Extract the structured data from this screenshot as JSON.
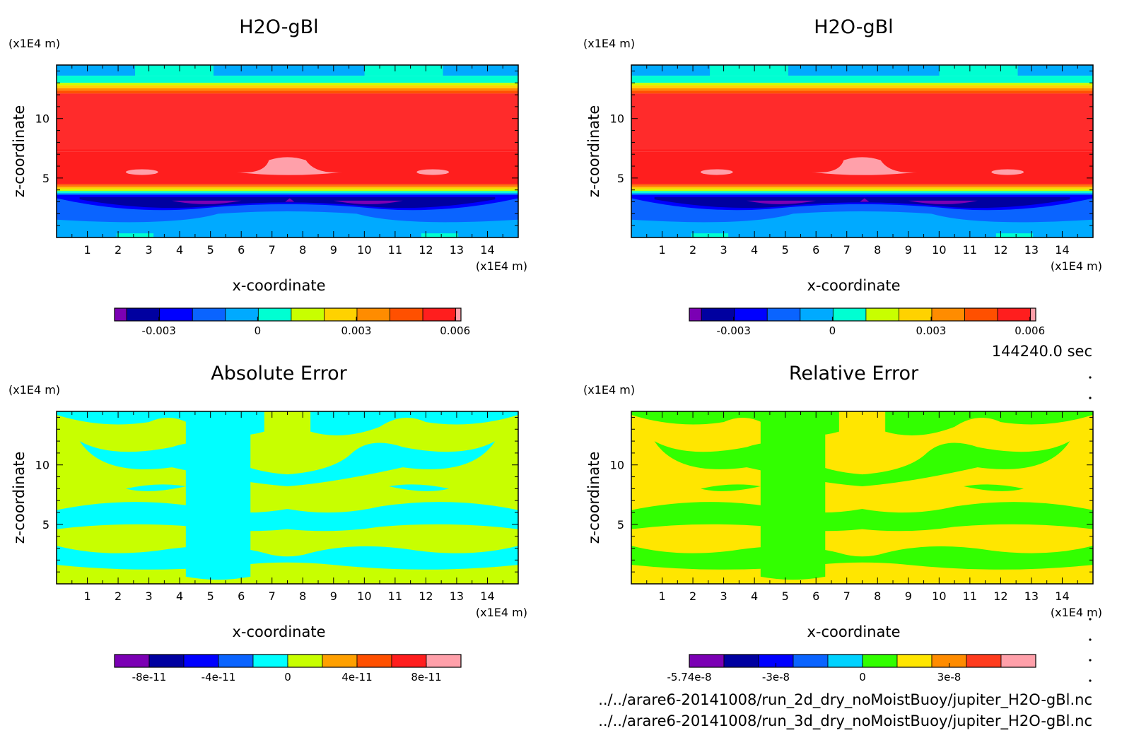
{
  "colors": {
    "palette": [
      "#7b00b4",
      "#0000a0",
      "#0000ff",
      "#0a64ff",
      "#00aaff",
      "#00ffd2",
      "#c8ff00",
      "#ffd200",
      "#ff8c00",
      "#ff5000",
      "#ff1e1e",
      "#ffa0aa"
    ]
  },
  "chart_data": [
    {
      "type": "heatmap",
      "title": "H2O-gBl",
      "xlabel": "x-coordinate",
      "ylabel": "z-coordinate",
      "xunit": "(x1E4 m)",
      "yunit": "(x1E4 m)",
      "xlim": [
        0,
        15
      ],
      "ylim": [
        0,
        14.5
      ],
      "xticks": [
        "1",
        "2",
        "3",
        "4",
        "5",
        "6",
        "7",
        "8",
        "9",
        "10",
        "11",
        "12",
        "13",
        "14"
      ],
      "yticks": [
        "5",
        "10"
      ],
      "colorbar_ticks": [
        "-0.003",
        "0",
        "0.003",
        "0.006"
      ],
      "colorbar_range": [
        -0.0045,
        0.0066
      ],
      "field": "h2o"
    },
    {
      "type": "heatmap",
      "title": "H2O-gBl",
      "xlabel": "x-coordinate",
      "ylabel": "z-coordinate",
      "xunit": "(x1E4 m)",
      "yunit": "(x1E4 m)",
      "xlim": [
        0,
        15
      ],
      "ylim": [
        0,
        14.5
      ],
      "xticks": [
        "1",
        "2",
        "3",
        "4",
        "5",
        "6",
        "7",
        "8",
        "9",
        "10",
        "11",
        "12",
        "13",
        "14"
      ],
      "yticks": [
        "5",
        "10"
      ],
      "colorbar_ticks": [
        "-0.003",
        "0",
        "0.003",
        "0.006"
      ],
      "colorbar_range": [
        -0.0045,
        0.0066
      ],
      "field": "h2o"
    },
    {
      "type": "heatmap",
      "title": "Absolute Error",
      "xlabel": "x-coordinate",
      "ylabel": "z-coordinate",
      "xunit": "(x1E4 m)",
      "yunit": "(x1E4 m)",
      "xlim": [
        0,
        15
      ],
      "ylim": [
        0,
        14.5
      ],
      "xticks": [
        "1",
        "2",
        "3",
        "4",
        "5",
        "6",
        "7",
        "8",
        "9",
        "10",
        "11",
        "12",
        "13",
        "14"
      ],
      "yticks": [
        "5",
        "10"
      ],
      "colorbar_ticks": [
        "-8e-11",
        "-4e-11",
        "0",
        "4e-11",
        "8e-11"
      ],
      "colorbar_range": [
        -1e-10,
        1e-10
      ],
      "field": "abs_error",
      "levels_shown": [
        "0 to 2e-11 (cyan)",
        "2e-11 to 4e-11 (yellow-green)"
      ]
    },
    {
      "type": "heatmap",
      "title": "Relative Error",
      "xlabel": "x-coordinate",
      "ylabel": "z-coordinate",
      "xunit": "(x1E4 m)",
      "yunit": "(x1E4 m)",
      "xlim": [
        0,
        15
      ],
      "ylim": [
        0,
        14.5
      ],
      "xticks": [
        "1",
        "2",
        "3",
        "4",
        "5",
        "6",
        "7",
        "8",
        "9",
        "10",
        "11",
        "12",
        "13",
        "14"
      ],
      "yticks": [
        "5",
        "10"
      ],
      "colorbar_ticks": [
        "-5.74e-8",
        "-3e-8",
        "0",
        "3e-8"
      ],
      "colorbar_range": [
        -5.74e-08,
        5.74e-08
      ],
      "field": "rel_error",
      "levels_shown": [
        "0 to 1e-8 (green)",
        "1e-8 to 2e-8 (yellow)"
      ]
    }
  ],
  "time_label": "144240.0 sec",
  "footer": {
    "file1": "../../arare6-20141008/run_2d_dry_noMoistBuoy/jupiter_H2O-gBl.nc",
    "file2": "../../arare6-20141008/run_3d_dry_noMoistBuoy/jupiter_H2O-gBl.nc"
  }
}
